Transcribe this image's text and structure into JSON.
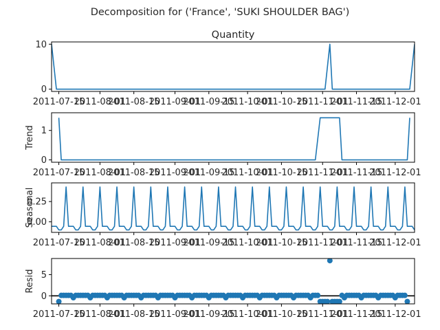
{
  "figure": {
    "suptitle": "Decomposition for ('France', 'SUKI  SHOULDER BAG')"
  },
  "chart_data": [
    {
      "type": "line",
      "panel": "observed",
      "title": "Quantity",
      "ylabel": "",
      "xlim": [
        "2011-07-12",
        "2011-12-09"
      ],
      "ylim": [
        -0.5,
        10.5
      ],
      "yticks": [
        0,
        10
      ],
      "xtick_labels": [
        "2011-07-15",
        "2011-08-01",
        "2011-08-15",
        "2011-09-01",
        "2011-09-15",
        "2011-10-01",
        "2011-10-15",
        "2011-11-01",
        "2011-11-15",
        "2011-12-01"
      ],
      "x": [
        "2011-07-12",
        "2011-07-14",
        "2011-11-02",
        "2011-11-04",
        "2011-11-05",
        "2011-12-07",
        "2011-12-09"
      ],
      "y": [
        10,
        0,
        0,
        10,
        0,
        0,
        10
      ]
    },
    {
      "type": "line",
      "panel": "trend",
      "title": "",
      "ylabel": "Trend",
      "xlim": [
        "2011-07-12",
        "2011-12-09"
      ],
      "ylim": [
        -0.08,
        1.6
      ],
      "yticks": [
        0,
        1
      ],
      "xtick_labels": [
        "2011-07-15",
        "2011-08-01",
        "2011-08-15",
        "2011-09-01",
        "2011-09-15",
        "2011-10-01",
        "2011-10-15",
        "2011-11-01",
        "2011-11-15",
        "2011-12-01"
      ],
      "x": [
        "2011-07-15",
        "2011-07-16",
        "2011-10-29",
        "2011-10-31",
        "2011-11-08",
        "2011-11-09",
        "2011-12-06",
        "2011-12-07"
      ],
      "y": [
        1.43,
        0,
        0,
        1.43,
        1.43,
        0,
        0,
        1.43
      ]
    },
    {
      "type": "line",
      "panel": "seasonal",
      "title": "",
      "ylabel": "Seasonal",
      "xlim": [
        "2011-07-12",
        "2011-12-09"
      ],
      "ylim": [
        -0.13,
        0.48
      ],
      "yticks": [
        0.0,
        0.25
      ],
      "ytick_labels": [
        "0.00",
        "0.25"
      ],
      "xtick_labels": [
        "2011-07-15",
        "2011-08-01",
        "2011-08-15",
        "2011-09-01",
        "2011-09-15",
        "2011-10-01",
        "2011-10-15",
        "2011-11-01",
        "2011-11-15",
        "2011-12-01"
      ],
      "period_days": 7,
      "first_date": "2011-07-12",
      "pattern": [
        -0.055,
        -0.055,
        -0.055,
        -0.1,
        -0.1,
        -0.055,
        0.43
      ]
    },
    {
      "type": "scatter",
      "panel": "resid",
      "title": "",
      "ylabel": "Resid",
      "xlim": [
        "2011-07-12",
        "2011-12-09"
      ],
      "ylim": [
        -1.9,
        8.8
      ],
      "yticks": [
        0,
        5
      ],
      "zero_line": true,
      "xtick_labels": [
        "2011-07-15",
        "2011-08-01",
        "2011-08-15",
        "2011-09-01",
        "2011-09-15",
        "2011-10-01",
        "2011-10-15",
        "2011-11-01",
        "2011-11-15",
        "2011-12-01"
      ],
      "x_start": "2011-07-15",
      "x_end": "2011-12-06",
      "baseline_pattern": [
        0.1,
        0.1,
        0.1,
        0.1,
        0.1,
        0.1,
        -0.45
      ],
      "overrides": [
        {
          "x": "2011-07-15",
          "y": -1.35
        },
        {
          "x": "2011-10-31",
          "y": -1.35
        },
        {
          "x": "2011-11-01",
          "y": -1.35
        },
        {
          "x": "2011-11-02",
          "y": -1.35
        },
        {
          "x": "2011-11-03",
          "y": -1.35
        },
        {
          "x": "2011-11-04",
          "y": 8.3
        },
        {
          "x": "2011-11-05",
          "y": -1.35
        },
        {
          "x": "2011-11-06",
          "y": -1.35
        },
        {
          "x": "2011-11-07",
          "y": -1.35
        },
        {
          "x": "2011-11-08",
          "y": -1.35
        },
        {
          "x": "2011-12-06",
          "y": -1.35
        }
      ]
    }
  ],
  "colors": {
    "series": "#1f77b4",
    "axis": "#000000",
    "text": "#262626",
    "zero_line": "#000000"
  }
}
